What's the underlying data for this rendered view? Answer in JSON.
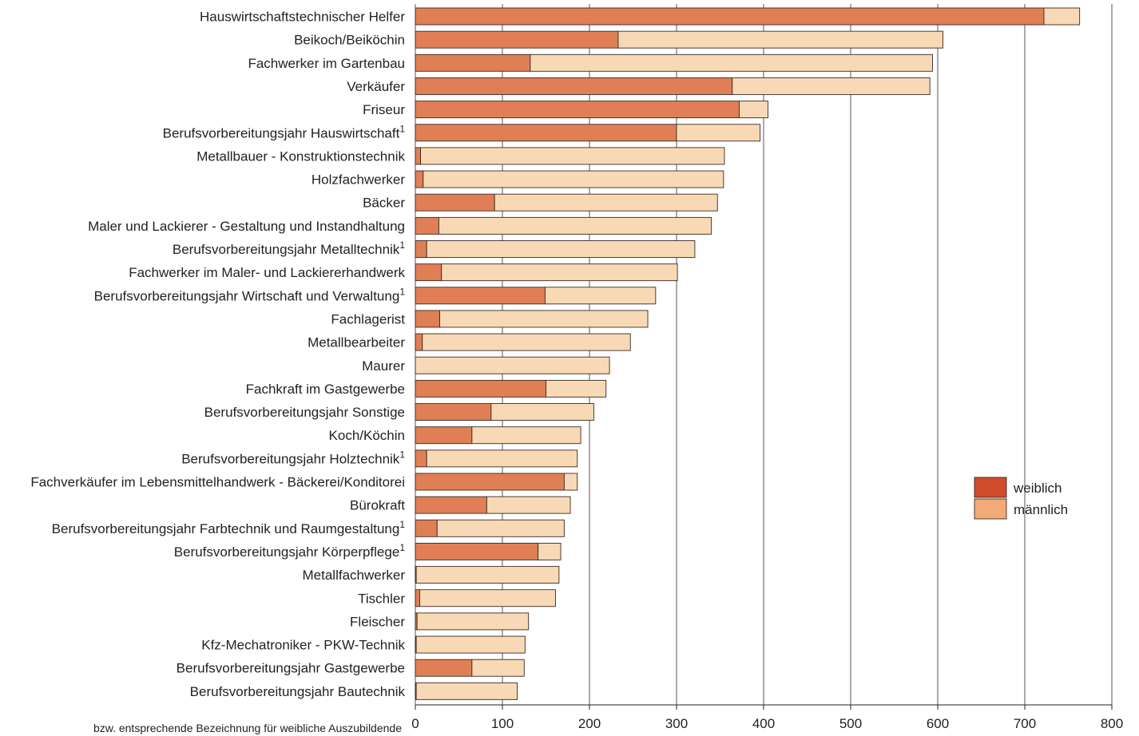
{
  "chart_data": {
    "type": "bar",
    "orientation": "horizontal",
    "stacked": true,
    "title": "",
    "xlabel": "",
    "ylabel": "",
    "xlim": [
      0,
      800
    ],
    "x_ticks": [
      "0",
      "100",
      "200",
      "300",
      "400",
      "500",
      "600",
      "700",
      "800"
    ],
    "grid": "vertical",
    "legend_position": "right",
    "footnote": "bzw. entsprechende Bezeichnung für weibliche Auszubildende",
    "categories": [
      {
        "name": "Hauswirtschaftstechnischer Helfer",
        "sup": ""
      },
      {
        "name": "Beikoch/Beiköchin",
        "sup": ""
      },
      {
        "name": "Fachwerker im Gartenbau",
        "sup": ""
      },
      {
        "name": "Verkäufer",
        "sup": ""
      },
      {
        "name": "Friseur",
        "sup": ""
      },
      {
        "name": "Berufsvorbereitungsjahr Hauswirtschaft",
        "sup": "1"
      },
      {
        "name": "Metallbauer - Konstruktionstechnik",
        "sup": ""
      },
      {
        "name": "Holzfachwerker",
        "sup": ""
      },
      {
        "name": "Bäcker",
        "sup": ""
      },
      {
        "name": "Maler und Lackierer - Gestaltung und Instandhaltung",
        "sup": ""
      },
      {
        "name": "Berufsvorbereitungsjahr Metalltechnik",
        "sup": "1"
      },
      {
        "name": "Fachwerker im Maler- und Lackiererhandwerk",
        "sup": ""
      },
      {
        "name": "Berufsvorbereitungsjahr Wirtschaft und Verwaltung",
        "sup": "1"
      },
      {
        "name": "Fachlagerist",
        "sup": ""
      },
      {
        "name": "Metallbearbeiter",
        "sup": ""
      },
      {
        "name": "Maurer",
        "sup": ""
      },
      {
        "name": "Fachkraft im Gastgewerbe",
        "sup": ""
      },
      {
        "name": "Berufsvorbereitungsjahr Sonstige",
        "sup": ""
      },
      {
        "name": "Koch/Köchin",
        "sup": ""
      },
      {
        "name": "Berufsvorbereitungsjahr Holztechnik",
        "sup": "1"
      },
      {
        "name": "Fachverkäufer im Lebensmittelhandwerk - Bäckerei/Konditorei",
        "sup": ""
      },
      {
        "name": "Bürokraft",
        "sup": ""
      },
      {
        "name": "Berufsvorbereitungsjahr Farbtechnik und Raumgestaltung",
        "sup": "1"
      },
      {
        "name": "Berufsvorbereitungsjahr Körperpflege",
        "sup": "1"
      },
      {
        "name": "Metallfachwerker",
        "sup": ""
      },
      {
        "name": "Tischler",
        "sup": ""
      },
      {
        "name": "Fleischer",
        "sup": ""
      },
      {
        "name": "Kfz-Mechatroniker - PKW-Technik",
        "sup": ""
      },
      {
        "name": "Berufsvorbereitungsjahr Gastgewerbe",
        "sup": ""
      },
      {
        "name": "Berufsvorbereitungsjahr Bautechnik",
        "sup": ""
      }
    ],
    "series": [
      {
        "name": "weiblich",
        "color": "#e07f55",
        "legend_color": "#d04c2a",
        "values": [
          722,
          233,
          132,
          364,
          372,
          300,
          6,
          9,
          91,
          27,
          13,
          30,
          149,
          28,
          8,
          0,
          150,
          87,
          65,
          13,
          171,
          82,
          25,
          141,
          1,
          5,
          2,
          1,
          65,
          1
        ]
      },
      {
        "name": "männlich",
        "color": "#f8d9b6",
        "legend_color": "#f2ab77",
        "values": [
          41,
          373,
          462,
          227,
          33,
          96,
          349,
          345,
          256,
          313,
          308,
          271,
          127,
          239,
          239,
          223,
          69,
          118,
          125,
          173,
          15,
          96,
          146,
          26,
          164,
          156,
          128,
          125,
          60,
          116
        ]
      }
    ]
  }
}
